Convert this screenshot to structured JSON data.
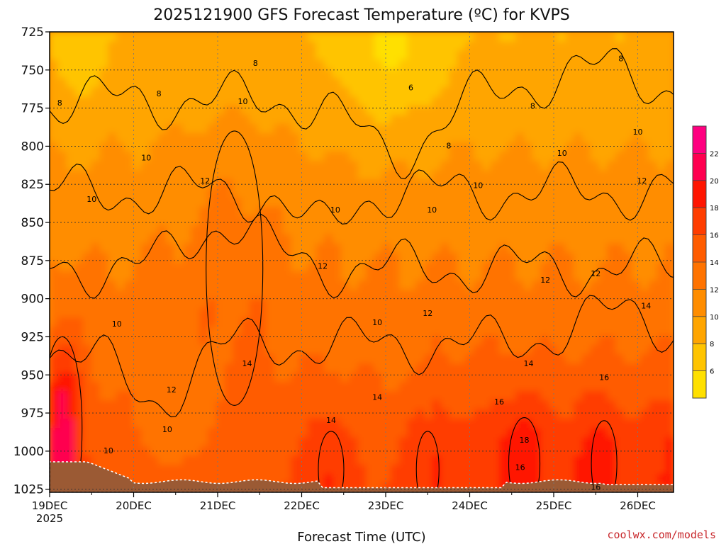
{
  "chart_data": {
    "type": "heatmap",
    "title": "2025121900 GFS Forecast Temperature (ºC) for KVPS",
    "xlabel": "Forecast Time (UTC)",
    "ylabel": "",
    "y_axis": {
      "unit": "hPa",
      "ticks": [
        "725",
        "750",
        "775",
        "800",
        "825",
        "850",
        "875",
        "900",
        "925",
        "950",
        "975",
        "1000",
        "1025"
      ],
      "range": [
        725,
        1027
      ]
    },
    "x_axis": {
      "ticks": [
        "19DEC",
        "20DEC",
        "21DEC",
        "22DEC",
        "23DEC",
        "24DEC",
        "25DEC",
        "26DEC"
      ],
      "first_tick_year": "2025",
      "range_days": [
        0,
        7.5
      ]
    },
    "colorbar": {
      "ticks": [
        "6",
        "8",
        "10",
        "12",
        "14",
        "16",
        "18",
        "20",
        "22"
      ],
      "bands": [
        {
          "min": 4,
          "max": 6,
          "color": "#ffe000"
        },
        {
          "min": 6,
          "max": 8,
          "color": "#ffc400"
        },
        {
          "min": 8,
          "max": 10,
          "color": "#ffa500"
        },
        {
          "min": 10,
          "max": 12,
          "color": "#ff8d00"
        },
        {
          "min": 12,
          "max": 14,
          "color": "#ff7300"
        },
        {
          "min": 14,
          "max": 16,
          "color": "#ff5c00"
        },
        {
          "min": 16,
          "max": 18,
          "color": "#ff3d00"
        },
        {
          "min": 18,
          "max": 20,
          "color": "#ff1500"
        },
        {
          "min": 20,
          "max": 22,
          "color": "#ff0050"
        },
        {
          "min": 22,
          "max": 24,
          "color": "#ff0080"
        }
      ]
    },
    "contour_labels": [
      {
        "text": "8",
        "day": 0.12,
        "p": 772
      },
      {
        "text": "8",
        "day": 1.3,
        "p": 766
      },
      {
        "text": "8",
        "day": 2.45,
        "p": 746
      },
      {
        "text": "6",
        "day": 4.3,
        "p": 762
      },
      {
        "text": "8",
        "day": 4.75,
        "p": 800
      },
      {
        "text": "8",
        "day": 5.75,
        "p": 774
      },
      {
        "text": "8",
        "day": 6.8,
        "p": 743
      },
      {
        "text": "10",
        "day": 0.5,
        "p": 835
      },
      {
        "text": "10",
        "day": 1.15,
        "p": 808
      },
      {
        "text": "10",
        "day": 2.3,
        "p": 771
      },
      {
        "text": "10",
        "day": 3.4,
        "p": 842
      },
      {
        "text": "10",
        "day": 4.55,
        "p": 842
      },
      {
        "text": "10",
        "day": 5.1,
        "p": 826
      },
      {
        "text": "10",
        "day": 6.1,
        "p": 805
      },
      {
        "text": "10",
        "day": 7.0,
        "p": 791
      },
      {
        "text": "10",
        "day": 0.8,
        "p": 917
      },
      {
        "text": "10",
        "day": 0.7,
        "p": 1000
      },
      {
        "text": "10",
        "day": 1.4,
        "p": 986
      },
      {
        "text": "10",
        "day": 3.9,
        "p": 916
      },
      {
        "text": "12",
        "day": 1.85,
        "p": 823
      },
      {
        "text": "12",
        "day": 3.25,
        "p": 879
      },
      {
        "text": "12",
        "day": 4.5,
        "p": 910
      },
      {
        "text": "12",
        "day": 5.9,
        "p": 888
      },
      {
        "text": "12",
        "day": 6.5,
        "p": 884
      },
      {
        "text": "12",
        "day": 7.05,
        "p": 823
      },
      {
        "text": "12",
        "day": 1.45,
        "p": 960
      },
      {
        "text": "14",
        "day": 2.35,
        "p": 943
      },
      {
        "text": "14",
        "day": 3.35,
        "p": 980
      },
      {
        "text": "14",
        "day": 3.9,
        "p": 965
      },
      {
        "text": "14",
        "day": 5.7,
        "p": 943
      },
      {
        "text": "14",
        "day": 7.1,
        "p": 905
      },
      {
        "text": "16",
        "day": 5.35,
        "p": 968
      },
      {
        "text": "16",
        "day": 6.6,
        "p": 952
      },
      {
        "text": "16",
        "day": 5.6,
        "p": 1011
      },
      {
        "text": "16",
        "day": 6.5,
        "p": 1024
      },
      {
        "text": "18",
        "day": 5.65,
        "p": 993
      }
    ],
    "grid": true,
    "legend": "right"
  },
  "credit": "coolwx.com/models"
}
